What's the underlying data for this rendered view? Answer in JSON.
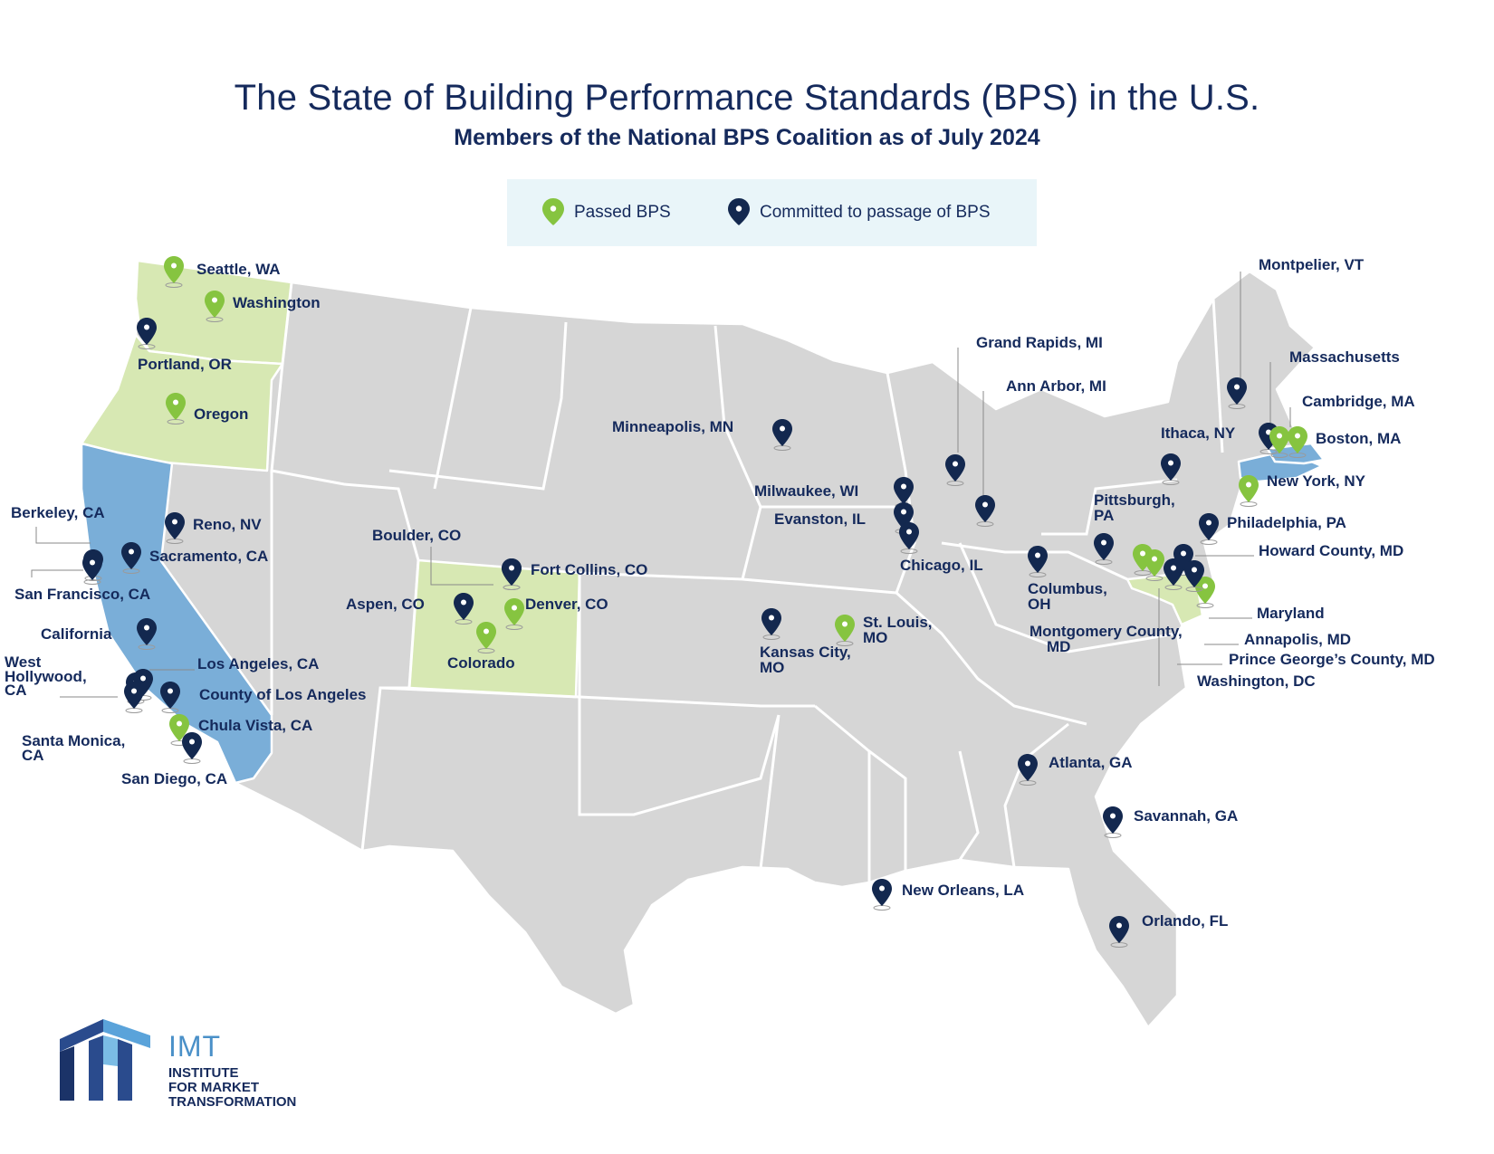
{
  "header": {
    "title": "The State of Building Performance Standards (BPS) in the U.S.",
    "subtitle": "Members of the National BPS Coalition as of July 2024"
  },
  "legend": {
    "passed_label": "Passed BPS",
    "committed_label": "Committed to passage of BPS"
  },
  "colors": {
    "passed": "#86c440",
    "committed": "#13284f",
    "passed_state_fill": "#d7e8b3",
    "committed_state_fill": "#7aaed8",
    "other_state_fill": "#d6d6d6",
    "title": "#152a5c"
  },
  "map": {
    "passed_states": [
      "Washington",
      "Oregon",
      "Colorado",
      "Maryland"
    ],
    "committed_states": [
      "California",
      "New York",
      "Massachusetts"
    ],
    "markers": [
      {
        "label": "Seattle, WA",
        "status": "passed"
      },
      {
        "label": "Washington",
        "status": "passed"
      },
      {
        "label": "Portland, OR",
        "status": "committed"
      },
      {
        "label": "Oregon",
        "status": "passed"
      },
      {
        "label": "Berkeley, CA",
        "status": "committed"
      },
      {
        "label": "Reno, NV",
        "status": "committed"
      },
      {
        "label": "Sacramento, CA",
        "status": "committed"
      },
      {
        "label": "San Francisco, CA",
        "status": "committed"
      },
      {
        "label": "California",
        "status": "committed"
      },
      {
        "label": "West Hollywood, CA",
        "status": "committed"
      },
      {
        "label": "Los Angeles, CA",
        "status": "committed"
      },
      {
        "label": "County of Los Angeles",
        "status": "committed"
      },
      {
        "label": "Santa Monica, CA",
        "status": "committed"
      },
      {
        "label": "Chula Vista, CA",
        "status": "passed"
      },
      {
        "label": "San Diego, CA",
        "status": "committed"
      },
      {
        "label": "Boulder, CO",
        "status": "committed"
      },
      {
        "label": "Fort Collins, CO",
        "status": "committed"
      },
      {
        "label": "Aspen, CO",
        "status": "committed"
      },
      {
        "label": "Denver, CO",
        "status": "passed"
      },
      {
        "label": "Colorado",
        "status": "passed"
      },
      {
        "label": "Minneapolis, MN",
        "status": "committed"
      },
      {
        "label": "Kansas City, MO",
        "status": "committed"
      },
      {
        "label": "St. Louis, MO",
        "status": "passed"
      },
      {
        "label": "Milwaukee, WI",
        "status": "committed"
      },
      {
        "label": "Evanston, IL",
        "status": "committed"
      },
      {
        "label": "Chicago, IL",
        "status": "committed"
      },
      {
        "label": "Grand Rapids, MI",
        "status": "committed"
      },
      {
        "label": "Ann Arbor, MI",
        "status": "committed"
      },
      {
        "label": "Columbus, OH",
        "status": "committed"
      },
      {
        "label": "Pittsburgh, PA",
        "status": "committed"
      },
      {
        "label": "Ithaca, NY",
        "status": "committed"
      },
      {
        "label": "Montpelier, VT",
        "status": "committed"
      },
      {
        "label": "Massachusetts",
        "status": "committed"
      },
      {
        "label": "Cambridge, MA",
        "status": "passed"
      },
      {
        "label": "Boston, MA",
        "status": "passed"
      },
      {
        "label": "New York, NY",
        "status": "passed"
      },
      {
        "label": "Philadelphia, PA",
        "status": "committed"
      },
      {
        "label": "Howard County, MD",
        "status": "committed"
      },
      {
        "label": "Maryland",
        "status": "passed"
      },
      {
        "label": "Montgomery County, MD",
        "status": "passed"
      },
      {
        "label": "Annapolis, MD",
        "status": "committed"
      },
      {
        "label": "Prince George’s County, MD",
        "status": "committed"
      },
      {
        "label": "Washington, DC",
        "status": "passed"
      },
      {
        "label": "Atlanta, GA",
        "status": "committed"
      },
      {
        "label": "Savannah, GA",
        "status": "committed"
      },
      {
        "label": "New Orleans, LA",
        "status": "committed"
      },
      {
        "label": "Orlando, FL",
        "status": "committed"
      }
    ]
  },
  "logo": {
    "name": "IMT",
    "line1": "INSTITUTE",
    "line2": "FOR MARKET",
    "line3": "TRANSFORMATION"
  }
}
